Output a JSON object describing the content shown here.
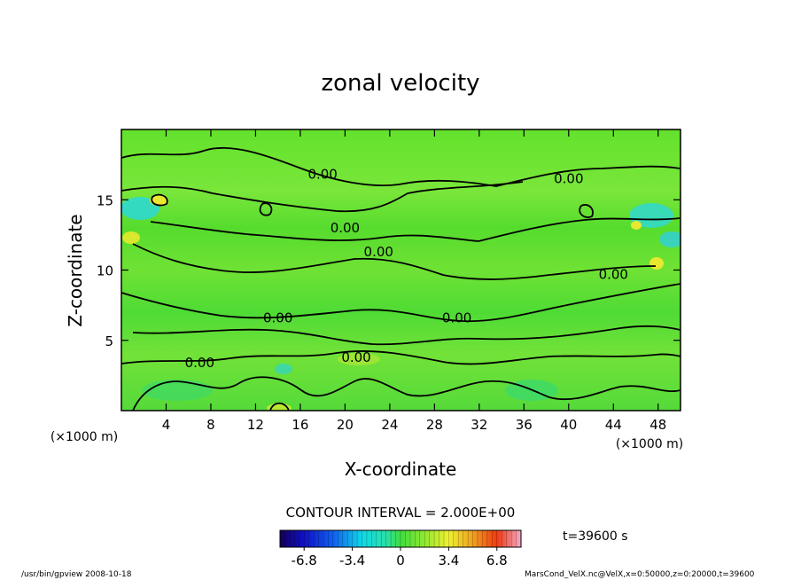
{
  "chart_data": {
    "type": "heatmap",
    "title": "zonal velocity",
    "xlabel": "X-coordinate",
    "ylabel": "Z-coordinate",
    "x_unit": "(×1000 m)",
    "y_unit": "(×1000 m)",
    "xlim": [
      0,
      50
    ],
    "ylim": [
      0,
      20
    ],
    "x_ticks": [
      4,
      8,
      12,
      16,
      20,
      24,
      28,
      32,
      36,
      40,
      44,
      48
    ],
    "y_ticks": [
      5,
      10,
      15
    ],
    "contour_interval_text": "CONTOUR INTERVAL = 2.000E+00",
    "contour_labels": [
      "0.00",
      "0.00",
      "0.00",
      "0.00",
      "0.00",
      "0.00",
      "0.00",
      "0.00",
      "0.00"
    ],
    "colorbar": {
      "min": -8.5,
      "max": 8.5,
      "tick_labels": [
        "-6.8",
        "-3.4",
        "0",
        "3.4",
        "6.8"
      ],
      "tick_values": [
        -6.8,
        -3.4,
        0,
        3.4,
        6.8
      ]
    },
    "time_label": "t=39600 s",
    "colors": {
      "field_dominant": "#5fe02a",
      "contour_line": "#000000"
    }
  },
  "footer": {
    "left": "/usr/bin/gpview   2008-10-18",
    "right": "MarsCond_VelX.nc@VelX,x=0:50000,z=0:20000,t=39600"
  }
}
